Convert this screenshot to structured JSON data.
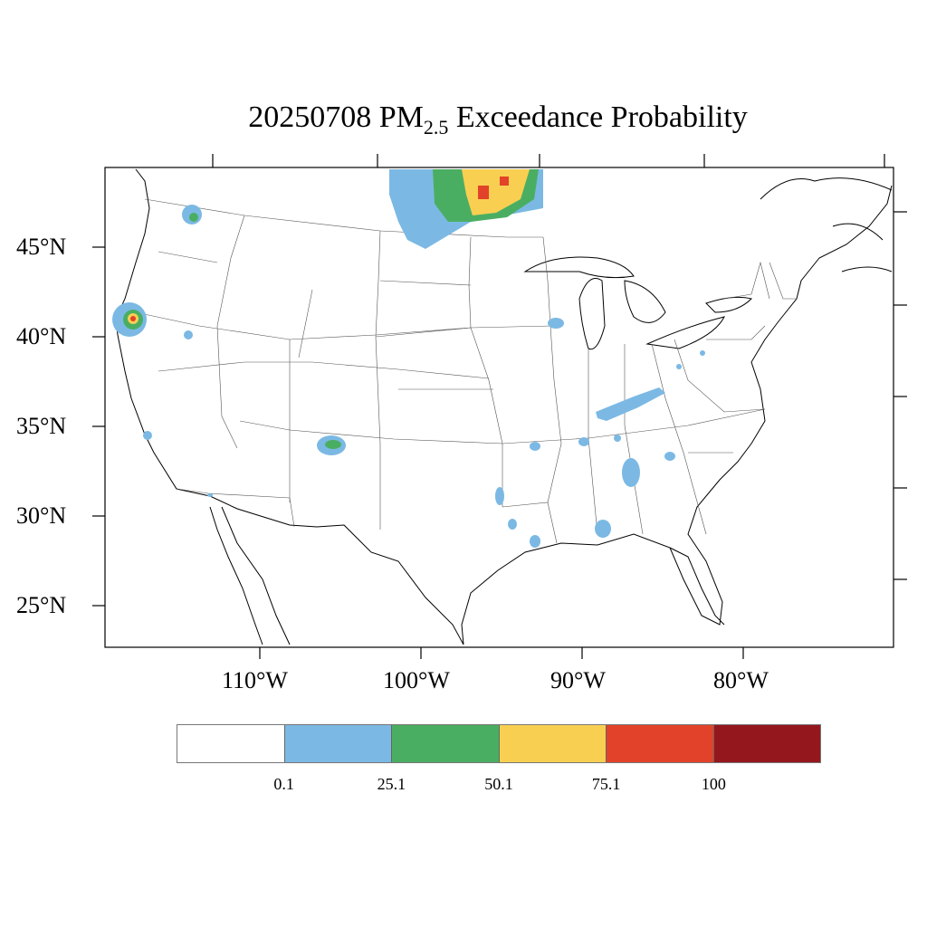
{
  "title": {
    "date": "20250708",
    "species": "PM",
    "subscript": "2.5",
    "suffix": "Exceedance Probability"
  },
  "map": {
    "region": "Contiguous United States",
    "lat_labels": [
      "45°N",
      "40°N",
      "35°N",
      "30°N",
      "25°N"
    ],
    "lon_labels": [
      "110°W",
      "100°W",
      "90°W",
      "80°W"
    ]
  },
  "legend": {
    "colors": [
      "#ffffff",
      "#7bb9e4",
      "#4aae62",
      "#f9cf52",
      "#e24229",
      "#94171d"
    ],
    "labels": [
      "0.1",
      "25.1",
      "50.1",
      "75.1",
      "100"
    ]
  }
}
